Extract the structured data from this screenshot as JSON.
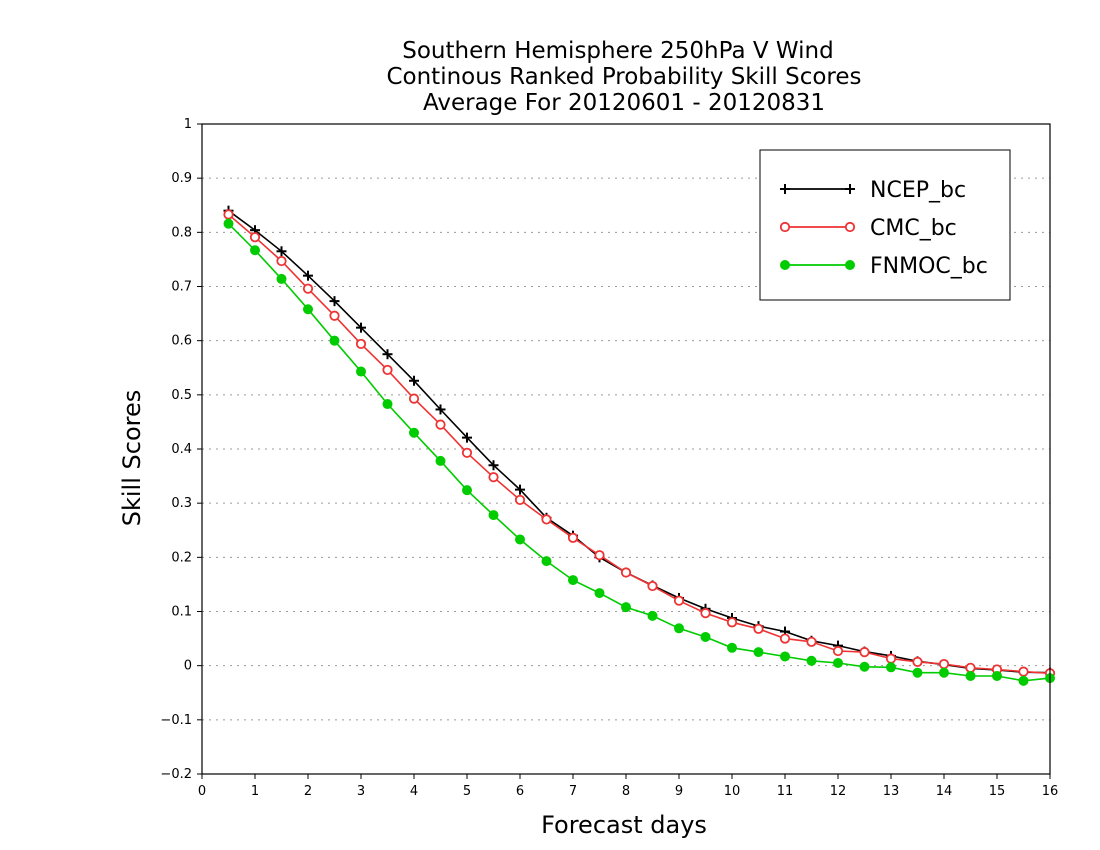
{
  "chart_data": {
    "type": "line",
    "title_lines": [
      "Southern Hemisphere 250hPa V Wind",
      "Continous Ranked Probability Skill Scores",
      "Average For 20120601 - 20120831"
    ],
    "xlabel": "Forecast days",
    "ylabel": "Skill Scores",
    "xlim": [
      0,
      16
    ],
    "ylim": [
      -0.2,
      1
    ],
    "xticks": [
      "0",
      "1",
      "2",
      "3",
      "4",
      "5",
      "6",
      "7",
      "8",
      "9",
      "10",
      "11",
      "12",
      "13",
      "14",
      "15",
      "16"
    ],
    "yticks": [
      "−0.2",
      "−0.1",
      "0",
      "0.1",
      "0.2",
      "0.3",
      "0.4",
      "0.5",
      "0.6",
      "0.7",
      "0.8",
      "0.9",
      "1"
    ],
    "grid": "horizontal dotted",
    "legend_position": "top-right",
    "x": [
      0.5,
      1,
      1.5,
      2,
      2.5,
      3,
      3.5,
      4,
      4.5,
      5,
      5.5,
      6,
      6.5,
      7,
      7.5,
      8,
      8.5,
      9,
      9.5,
      10,
      10.5,
      11,
      11.5,
      12,
      12.5,
      13,
      13.5,
      14,
      14.5,
      15,
      15.5,
      16
    ],
    "series": [
      {
        "name": "NCEP_bc",
        "color": "#000000",
        "marker": "plus",
        "values": [
          0.84,
          0.804,
          0.765,
          0.72,
          0.673,
          0.624,
          0.575,
          0.526,
          0.473,
          0.421,
          0.37,
          0.325,
          0.273,
          0.24,
          0.2,
          0.172,
          0.148,
          0.125,
          0.105,
          0.088,
          0.073,
          0.063,
          0.046,
          0.037,
          0.026,
          0.018,
          0.008,
          0.002,
          -0.005,
          -0.008,
          -0.012,
          -0.013
        ]
      },
      {
        "name": "CMC_bc",
        "color": "#ee3333",
        "marker": "open-circle",
        "values": [
          0.833,
          0.791,
          0.747,
          0.696,
          0.646,
          0.594,
          0.546,
          0.493,
          0.445,
          0.393,
          0.348,
          0.306,
          0.27,
          0.236,
          0.204,
          0.172,
          0.147,
          0.12,
          0.097,
          0.08,
          0.068,
          0.05,
          0.044,
          0.027,
          0.025,
          0.013,
          0.007,
          0.003,
          -0.004,
          -0.007,
          -0.011,
          -0.014
        ]
      },
      {
        "name": "FNMOC_bc",
        "color": "#00cc00",
        "marker": "filled-circle",
        "values": [
          0.816,
          0.767,
          0.714,
          0.658,
          0.6,
          0.543,
          0.483,
          0.43,
          0.378,
          0.324,
          0.278,
          0.233,
          0.193,
          0.158,
          0.134,
          0.108,
          0.092,
          0.069,
          0.053,
          0.033,
          0.025,
          0.017,
          0.009,
          0.005,
          -0.002,
          -0.003,
          -0.013,
          -0.013,
          -0.019,
          -0.019,
          -0.028,
          -0.023
        ]
      }
    ]
  }
}
